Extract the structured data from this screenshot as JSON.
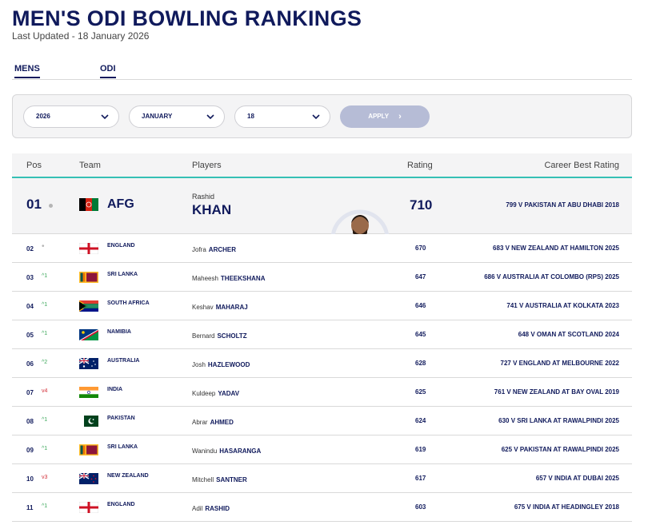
{
  "header": {
    "title": "MEN'S ODI BOWLING RANKINGS",
    "last_updated": "Last Updated - 18 January 2026"
  },
  "tabs": [
    {
      "label": "MENS"
    },
    {
      "label": "ODI"
    }
  ],
  "filters": {
    "year": "2026",
    "month": "JANUARY",
    "day": "18",
    "apply_label": "APPLY"
  },
  "table": {
    "headers": {
      "pos": "Pos",
      "team": "Team",
      "players": "Players",
      "rating": "Rating",
      "career": "Career Best Rating"
    },
    "top": {
      "pos": "01",
      "team": "AFG",
      "first_name": "Rashid",
      "last_name": "KHAN",
      "rating": "710",
      "career_best": "799 V PAKISTAN AT ABU DHABI 2018"
    },
    "rows": [
      {
        "pos": "02",
        "move": "•",
        "move_type": "same",
        "team": "ENGLAND",
        "first": "Jofra",
        "last": "ARCHER",
        "rating": "670",
        "career": "683 V NEW ZEALAND AT HAMILTON 2025"
      },
      {
        "pos": "03",
        "move": "^1",
        "move_type": "up",
        "team": "SRI LANKA",
        "first": "Maheesh",
        "last": "THEEKSHANA",
        "rating": "647",
        "career": "686 V AUSTRALIA AT COLOMBO (RPS) 2025"
      },
      {
        "pos": "04",
        "move": "^1",
        "move_type": "up",
        "team": "SOUTH AFRICA",
        "first": "Keshav",
        "last": "MAHARAJ",
        "rating": "646",
        "career": "741 V AUSTRALIA AT KOLKATA 2023"
      },
      {
        "pos": "05",
        "move": "^1",
        "move_type": "up",
        "team": "NAMIBIA",
        "first": "Bernard",
        "last": "SCHOLTZ",
        "rating": "645",
        "career": "648 V OMAN AT SCOTLAND 2024"
      },
      {
        "pos": "06",
        "move": "^2",
        "move_type": "up",
        "team": "AUSTRALIA",
        "first": "Josh",
        "last": "HAZLEWOOD",
        "rating": "628",
        "career": "727 V ENGLAND AT MELBOURNE 2022"
      },
      {
        "pos": "07",
        "move": "v4",
        "move_type": "down",
        "team": "INDIA",
        "first": "Kuldeep",
        "last": "YADAV",
        "rating": "625",
        "career": "761 V NEW ZEALAND AT BAY OVAL 2019"
      },
      {
        "pos": "08",
        "move": "^1",
        "move_type": "up",
        "team": "PAKISTAN",
        "first": "Abrar",
        "last": "AHMED",
        "rating": "624",
        "career": "630 V SRI LANKA AT RAWALPINDI 2025"
      },
      {
        "pos": "09",
        "move": "^1",
        "move_type": "up",
        "team": "SRI LANKA",
        "first": "Wanindu",
        "last": "HASARANGA",
        "rating": "619",
        "career": "625 V PAKISTAN AT RAWALPINDI 2025"
      },
      {
        "pos": "10",
        "move": "v3",
        "move_type": "down",
        "team": "NEW ZEALAND",
        "first": "Mitchell",
        "last": "SANTNER",
        "rating": "617",
        "career": "657 V INDIA AT DUBAI 2025"
      },
      {
        "pos": "11",
        "move": "^1",
        "move_type": "up",
        "team": "ENGLAND",
        "first": "Adil",
        "last": "RASHID",
        "rating": "603",
        "career": "675 V INDIA AT HEADINGLEY 2018"
      }
    ]
  }
}
